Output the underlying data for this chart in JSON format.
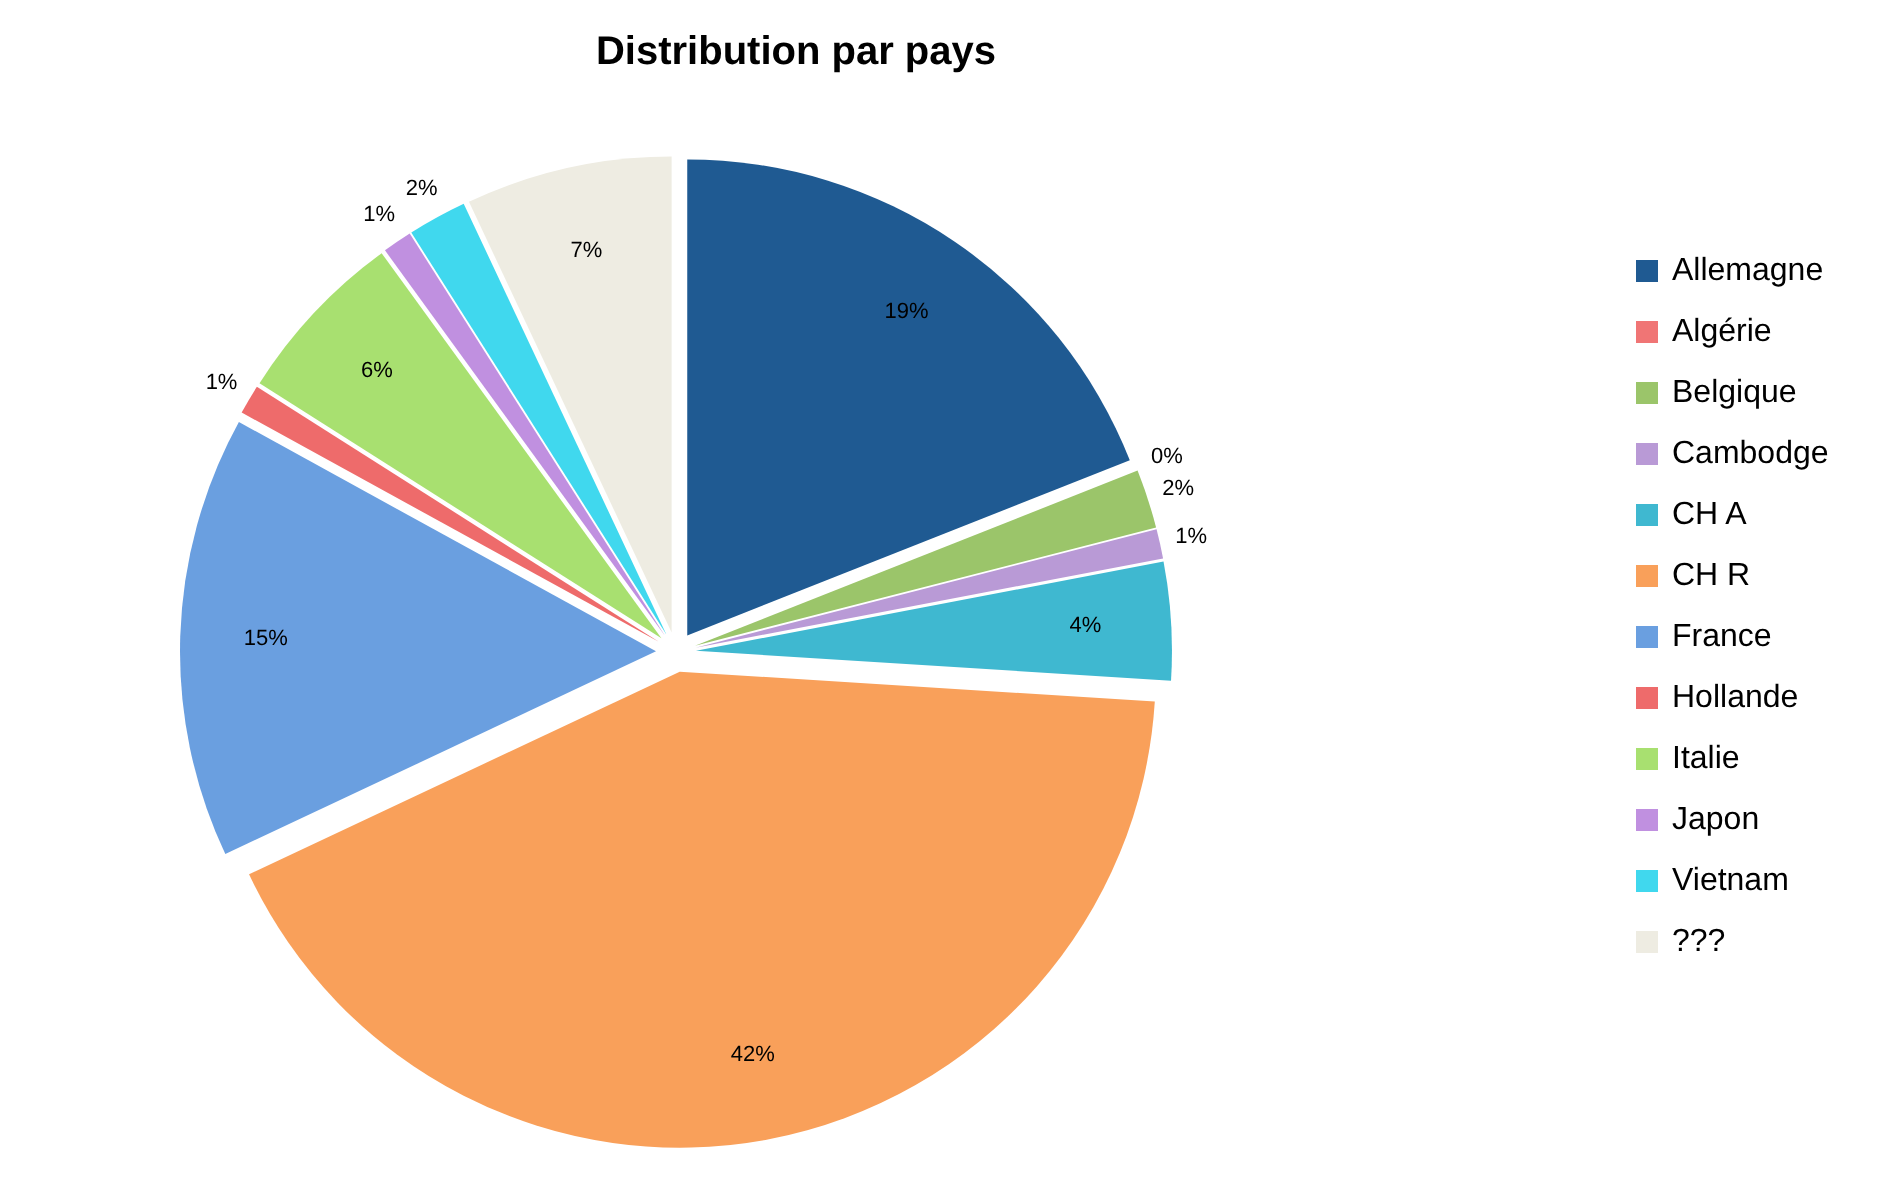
{
  "chart_data": {
    "type": "pie",
    "title": "Distribution par pays",
    "categories": [
      "Allemagne",
      "Algérie",
      "Belgique",
      "Cambodge",
      "CH A",
      "CH R",
      "France",
      "Hollande",
      "Italie",
      "Japon",
      "Vietnam",
      "???"
    ],
    "values": [
      19,
      0,
      2,
      1,
      4,
      42,
      15,
      1,
      6,
      1,
      2,
      7
    ],
    "value_labels": [
      "19%",
      "0%",
      "2%",
      "1%",
      "4%",
      "42%",
      "15%",
      "1%",
      "6%",
      "1%",
      "2%",
      "7%"
    ],
    "colors": [
      "#1f5a92",
      "#f07575",
      "#9bc56a",
      "#b99ad6",
      "#3fb8d0",
      "#f9a05a",
      "#6a9fe0",
      "#ee6b6b",
      "#a8e070",
      "#c090e0",
      "#40d8ee",
      "#eeece2"
    ],
    "legend": "right"
  }
}
